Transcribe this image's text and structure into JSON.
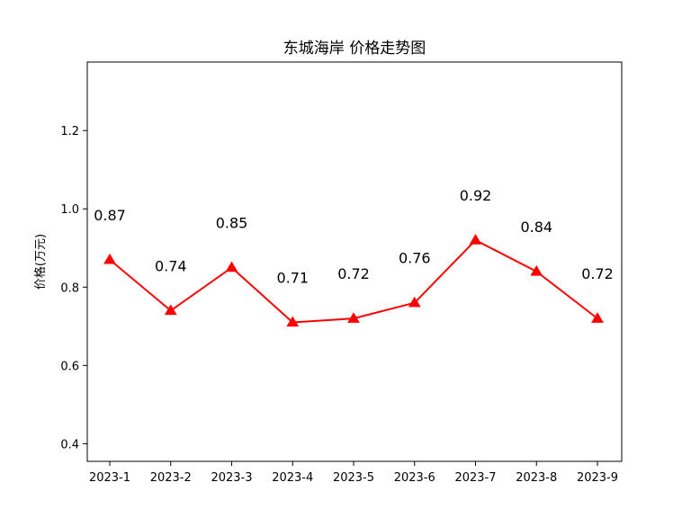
{
  "chart_data": {
    "type": "line",
    "title": "东城海岸 价格走势图",
    "xlabel": "",
    "ylabel": "价格(万元)",
    "categories": [
      "2023-1",
      "2023-2",
      "2023-3",
      "2023-4",
      "2023-5",
      "2023-6",
      "2023-7",
      "2023-8",
      "2023-9"
    ],
    "series": [
      {
        "values": [
          0.87,
          0.74,
          0.85,
          0.71,
          0.72,
          0.76,
          0.92,
          0.84,
          0.72
        ],
        "color": "#ff0000",
        "marker": "triangle-up"
      }
    ],
    "data_labels": [
      "0.87",
      "0.74",
      "0.85",
      "0.71",
      "0.72",
      "0.76",
      "0.92",
      "0.84",
      "0.72"
    ],
    "ylim": [
      0.355,
      1.375
    ],
    "yticks": [
      0.4,
      0.6,
      0.8,
      1.0,
      1.2
    ],
    "ytick_labels": [
      "0.4",
      "0.6",
      "0.8",
      "1.0",
      "1.2"
    ],
    "grid": false,
    "legend": "none"
  }
}
